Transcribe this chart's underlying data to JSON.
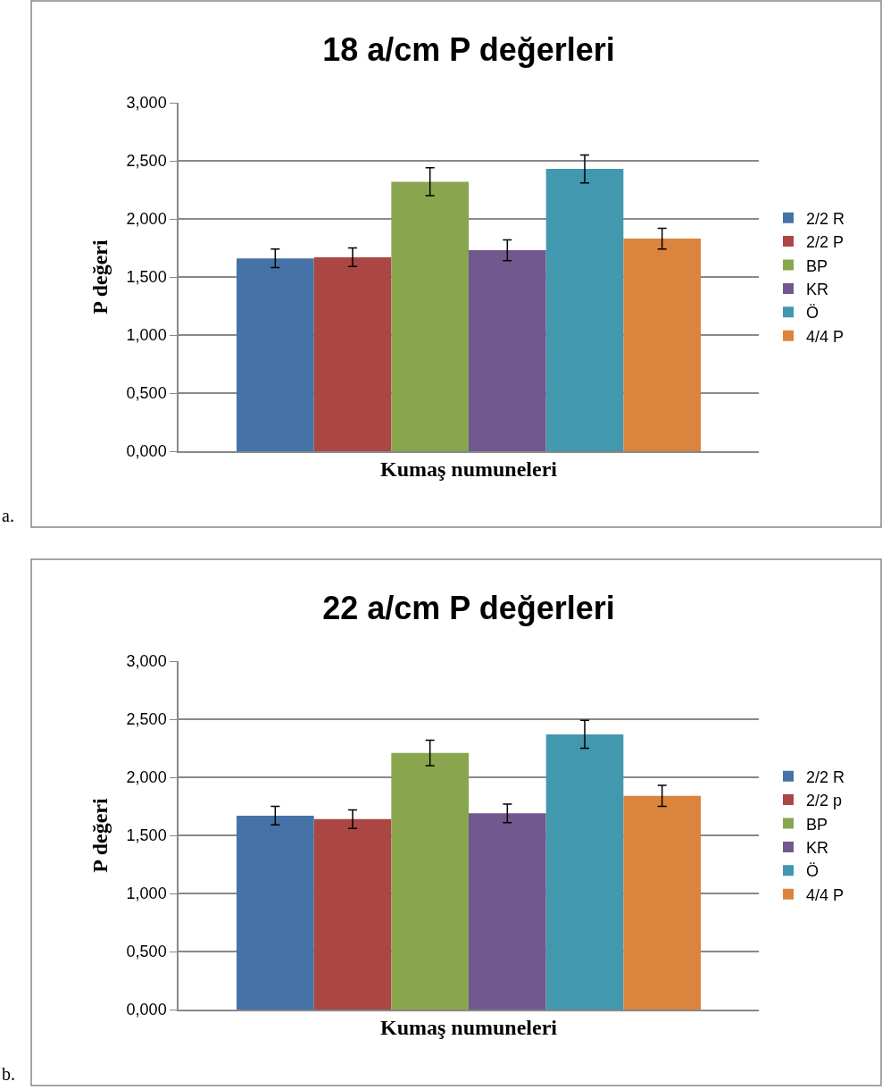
{
  "chart_data": [
    {
      "type": "bar",
      "title": "18 a/cm P değerleri",
      "xlabel": "Kumaş numuneleri",
      "ylabel": "P değeri",
      "categories": [
        null
      ],
      "series": [
        {
          "name": "2/2 R",
          "color": "#4572a7",
          "values": [
            1.66
          ],
          "errors": [
            0.08
          ]
        },
        {
          "name": "2/2 P",
          "color": "#aa4643",
          "values": [
            1.67
          ],
          "errors": [
            0.08
          ]
        },
        {
          "name": "BP",
          "color": "#89a54e",
          "values": [
            2.32
          ],
          "errors": [
            0.12
          ]
        },
        {
          "name": "KR",
          "color": "#71588f",
          "values": [
            1.73
          ],
          "errors": [
            0.09
          ]
        },
        {
          "name": "Ö",
          "color": "#4198af",
          "values": [
            2.43
          ],
          "errors": [
            0.12
          ]
        },
        {
          "name": "4/4 P",
          "color": "#db843d",
          "values": [
            1.83
          ],
          "errors": [
            0.09
          ]
        }
      ],
      "ylim": [
        0,
        3
      ],
      "yticks": [
        {
          "value": 0,
          "label": "0,000"
        },
        {
          "value": 0.5,
          "label": "0,500"
        },
        {
          "value": 1,
          "label": "1,000"
        },
        {
          "value": 1.5,
          "label": "1,500"
        },
        {
          "value": 2,
          "label": "2,000"
        },
        {
          "value": 2.5,
          "label": "2,500"
        },
        {
          "value": 3,
          "label": "3,000"
        }
      ],
      "grid": "y",
      "legend": "right",
      "tick_labels": "y",
      "annotations": [
        "a."
      ]
    },
    {
      "type": "bar",
      "title": "22 a/cm P değerleri",
      "xlabel": "Kumaş numuneleri",
      "ylabel": "P değeri",
      "categories": [
        null
      ],
      "series": [
        {
          "name": "2/2 R",
          "color": "#4572a7",
          "values": [
            1.67
          ],
          "errors": [
            0.08
          ]
        },
        {
          "name": "2/2 p",
          "color": "#aa4643",
          "values": [
            1.64
          ],
          "errors": [
            0.08
          ]
        },
        {
          "name": "BP",
          "color": "#89a54e",
          "values": [
            2.21
          ],
          "errors": [
            0.11
          ]
        },
        {
          "name": "KR",
          "color": "#71588f",
          "values": [
            1.69
          ],
          "errors": [
            0.08
          ]
        },
        {
          "name": "Ö",
          "color": "#4198af",
          "values": [
            2.37
          ],
          "errors": [
            0.12
          ]
        },
        {
          "name": "4/4 P",
          "color": "#db843d",
          "values": [
            1.84
          ],
          "errors": [
            0.09
          ]
        }
      ],
      "ylim": [
        0,
        3
      ],
      "yticks": [
        {
          "value": 0,
          "label": "0,000"
        },
        {
          "value": 0.5,
          "label": "0,500"
        },
        {
          "value": 1,
          "label": "1,000"
        },
        {
          "value": 1.5,
          "label": "1,500"
        },
        {
          "value": 2,
          "label": "2,000"
        },
        {
          "value": 2.5,
          "label": "2,500"
        },
        {
          "value": 3,
          "label": "3,000"
        }
      ],
      "grid": "y",
      "legend": "right",
      "tick_labels": "y",
      "annotations": [
        "b."
      ]
    }
  ]
}
